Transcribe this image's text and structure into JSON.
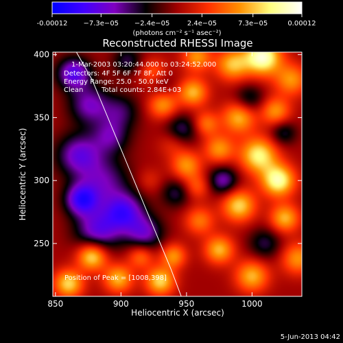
{
  "chart_data": {
    "type": "heatmap",
    "title": "Reconstructed RHESSI Image",
    "xlabel": "Heliocentric X (arcsec)",
    "ylabel": "Heliocentric Y (arcsec)",
    "xlim": [
      848,
      1038
    ],
    "ylim": [
      208,
      402
    ],
    "xticks": [
      {
        "value": 850,
        "label": "850"
      },
      {
        "value": 900,
        "label": "900"
      },
      {
        "value": 950,
        "label": "950"
      },
      {
        "value": 1000,
        "label": "1000"
      }
    ],
    "yticks": [
      {
        "value": 250,
        "label": "250"
      },
      {
        "value": 300,
        "label": "300"
      },
      {
        "value": 350,
        "label": "350"
      },
      {
        "value": 400,
        "label": "400"
      }
    ],
    "colorbar": {
      "min": -0.00012,
      "max": 0.00012,
      "colors": [
        "#0000ff",
        "#4000ff",
        "#8000c0",
        "#000000",
        "#a00000",
        "#ff3000",
        "#ff9000",
        "#ffff80",
        "#ffffff"
      ],
      "tick_labels": [
        {
          "value": -0.00012,
          "label": "-0.00012"
        },
        {
          "value": -7.3e-05,
          "label": "−7.3e−05"
        },
        {
          "value": -2.4e-05,
          "label": "−2.4e−05"
        },
        {
          "value": 2.4e-05,
          "label": "2.4e−05"
        },
        {
          "value": 7.3e-05,
          "label": "7.3e−05"
        },
        {
          "value": 0.00012,
          "label": "0.00012"
        }
      ],
      "unit_label": "(photons cm⁻² s⁻¹ asec⁻²)"
    },
    "annotations": {
      "time_range": "1-Mar-2003 03:20:44.000 to 03:24:52.000",
      "detectors": "Detectors: 4F 5F 6F 7F 8F, Att 0",
      "energy_range": "Energy Range: 25.0 - 50.0 keV",
      "algorithm": "Clean",
      "total_counts": "Total counts: 2.84E+03",
      "peak": "Position of Peak = [1008,398]"
    },
    "peak_position": [
      1008,
      398
    ],
    "limb_curve": [
      [
        866,
        402
      ],
      [
        878,
        380
      ],
      [
        890,
        350
      ],
      [
        902,
        320
      ],
      [
        914,
        290
      ],
      [
        926,
        260
      ],
      [
        938,
        230
      ],
      [
        946,
        208
      ]
    ],
    "blobs": [
      {
        "x": 864,
        "y": 385,
        "v": -8e-05,
        "s": 9
      },
      {
        "x": 876,
        "y": 360,
        "v": -6e-05,
        "s": 11
      },
      {
        "x": 868,
        "y": 320,
        "v": -7e-05,
        "s": 12
      },
      {
        "x": 888,
        "y": 300,
        "v": -5e-05,
        "s": 13
      },
      {
        "x": 902,
        "y": 275,
        "v": -8e-05,
        "s": 11
      },
      {
        "x": 918,
        "y": 258,
        "v": -6e-05,
        "s": 10
      },
      {
        "x": 882,
        "y": 260,
        "v": -7e-05,
        "s": 12
      },
      {
        "x": 892,
        "y": 335,
        "v": -5e-05,
        "s": 10
      },
      {
        "x": 870,
        "y": 285,
        "v": -9e-05,
        "s": 9
      },
      {
        "x": 900,
        "y": 355,
        "v": -4e-05,
        "s": 10
      },
      {
        "x": 930,
        "y": 378,
        "v": -3e-05,
        "s": 8
      },
      {
        "x": 946,
        "y": 340,
        "v": -5e-05,
        "s": 9
      },
      {
        "x": 978,
        "y": 300,
        "v": -6e-05,
        "s": 8
      },
      {
        "x": 998,
        "y": 365,
        "v": -4e-05,
        "s": 8
      },
      {
        "x": 1010,
        "y": 250,
        "v": -4e-05,
        "s": 9
      },
      {
        "x": 1024,
        "y": 338,
        "v": -4e-05,
        "s": 7
      },
      {
        "x": 942,
        "y": 290,
        "v": -4e-05,
        "s": 8
      },
      {
        "x": 905,
        "y": 395,
        "v": -4e-05,
        "s": 8
      },
      {
        "x": 958,
        "y": 398,
        "v": 6e-05,
        "s": 8
      },
      {
        "x": 985,
        "y": 392,
        "v": 7e-05,
        "s": 9
      },
      {
        "x": 1008,
        "y": 398,
        "v": 0.00011,
        "s": 10
      },
      {
        "x": 1030,
        "y": 380,
        "v": 6e-05,
        "s": 9
      },
      {
        "x": 1020,
        "y": 300,
        "v": 0.0001,
        "s": 9
      },
      {
        "x": 1005,
        "y": 320,
        "v": 9e-05,
        "s": 10
      },
      {
        "x": 990,
        "y": 280,
        "v": 8e-05,
        "s": 9
      },
      {
        "x": 975,
        "y": 325,
        "v": 6e-05,
        "s": 8
      },
      {
        "x": 965,
        "y": 345,
        "v": 5e-05,
        "s": 7
      },
      {
        "x": 950,
        "y": 312,
        "v": 6e-05,
        "s": 8
      },
      {
        "x": 960,
        "y": 268,
        "v": 5e-05,
        "s": 8
      },
      {
        "x": 975,
        "y": 245,
        "v": 7e-05,
        "s": 8
      },
      {
        "x": 1000,
        "y": 224,
        "v": 7e-05,
        "s": 9
      },
      {
        "x": 1035,
        "y": 238,
        "v": 6e-05,
        "s": 9
      },
      {
        "x": 1025,
        "y": 270,
        "v": 7e-05,
        "s": 8
      },
      {
        "x": 940,
        "y": 240,
        "v": 6e-05,
        "s": 7
      },
      {
        "x": 930,
        "y": 220,
        "v": 8e-05,
        "s": 8
      },
      {
        "x": 878,
        "y": 240,
        "v": 9e-05,
        "s": 8
      },
      {
        "x": 860,
        "y": 218,
        "v": 8e-05,
        "s": 8
      },
      {
        "x": 898,
        "y": 222,
        "v": 7e-05,
        "s": 8
      },
      {
        "x": 915,
        "y": 240,
        "v": 5e-05,
        "s": 7
      },
      {
        "x": 932,
        "y": 360,
        "v": 6e-05,
        "s": 8
      },
      {
        "x": 925,
        "y": 385,
        "v": 5e-05,
        "s": 8
      },
      {
        "x": 955,
        "y": 370,
        "v": 7e-05,
        "s": 8
      },
      {
        "x": 940,
        "y": 330,
        "v": 3e-05,
        "s": 8
      },
      {
        "x": 990,
        "y": 350,
        "v": 7e-05,
        "s": 9
      },
      {
        "x": 1018,
        "y": 355,
        "v": 6e-05,
        "s": 8
      },
      {
        "x": 958,
        "y": 295,
        "v": 4e-05,
        "s": 7
      },
      {
        "x": 922,
        "y": 300,
        "v": 2e-05,
        "s": 7
      }
    ]
  },
  "footer": {
    "date": "5-Jun-2013 04:42"
  }
}
